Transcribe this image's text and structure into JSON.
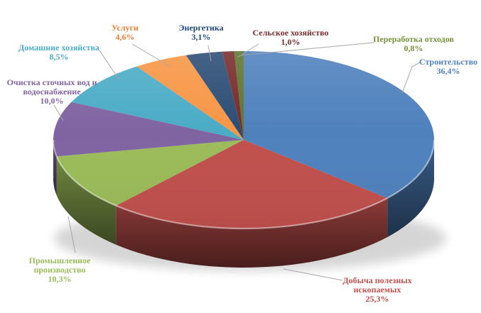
{
  "chart_data": {
    "type": "pie",
    "style": "3d",
    "title": "",
    "legend_position": "none",
    "labels_mode": "outside: category name + percent, comma decimal",
    "start_angle_deg": 0,
    "direction": "clockwise",
    "background": "#FFFFFF",
    "leader_line_color": "#A6A6A6",
    "slices": [
      {
        "label": "Строительство",
        "value": 36.4,
        "display": "36,4%",
        "color": "#4F81BD",
        "label_color": "#4F81BD"
      },
      {
        "label": "Добыча полезных ископаемых",
        "value": 25.3,
        "display": "25,3%",
        "color": "#C0504D",
        "label_color": "#C0504D"
      },
      {
        "label": "Промышленное производство",
        "value": 10.3,
        "display": "10,3%",
        "color": "#9BBB59",
        "label_color": "#9BBB59"
      },
      {
        "label": "Очистка сточных вод и водоснабжение",
        "value": 10.0,
        "display": "10,0%",
        "color": "#8064A2",
        "label_color": "#8064A2"
      },
      {
        "label": "Домашние хозяйства",
        "value": 8.5,
        "display": "8,5%",
        "color": "#4BACC6",
        "label_color": "#4BACC6"
      },
      {
        "label": "Услуги",
        "value": 4.6,
        "display": "4,6%",
        "color": "#F79646",
        "label_color": "#ED7D31"
      },
      {
        "label": "Энергетика",
        "value": 3.1,
        "display": "3,1%",
        "color": "#2C4D75",
        "label_color": "#1F497D"
      },
      {
        "label": "Сельское хозяйство",
        "value": 1.0,
        "display": "1,0%",
        "color": "#772C2A",
        "label_color": "#772C2A"
      },
      {
        "label": "Переработка отходов",
        "value": 0.8,
        "display": "0,8%",
        "color": "#5F7530",
        "label_color": "#76923C"
      }
    ]
  }
}
